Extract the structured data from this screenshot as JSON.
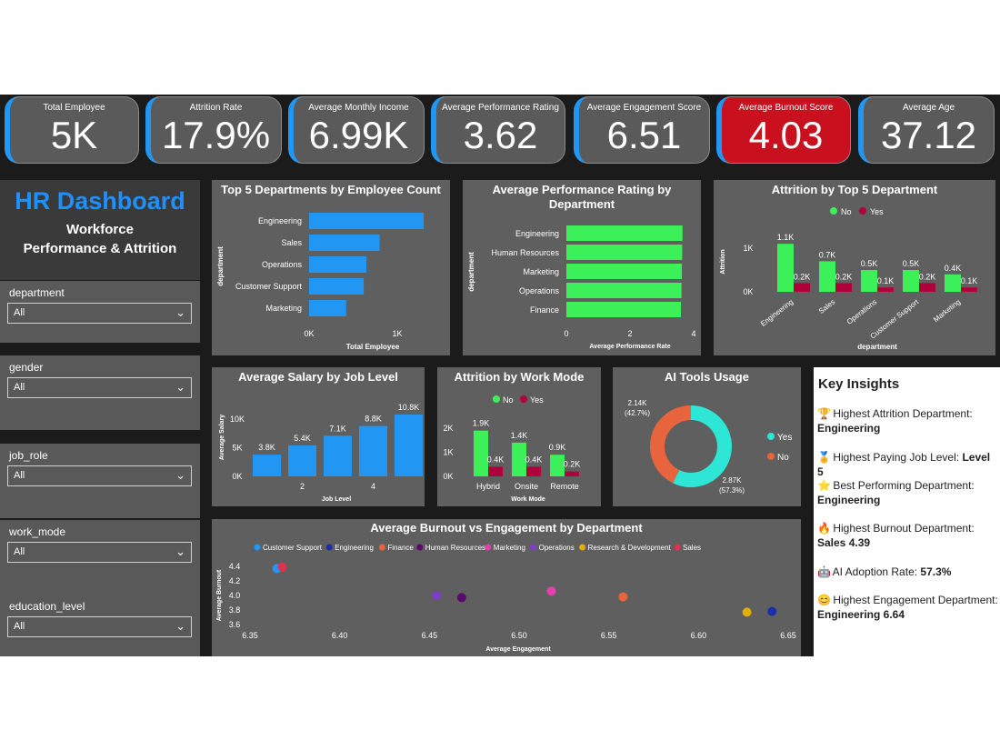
{
  "kpis": [
    {
      "label": "Total Employee",
      "value": "5K"
    },
    {
      "label": "Attrition Rate",
      "value": "17.9%"
    },
    {
      "label": "Average Monthly Income",
      "value": "6.99K"
    },
    {
      "label": "Average Performance Rating",
      "value": "3.62"
    },
    {
      "label": "Average Engagement Score",
      "value": "6.51"
    },
    {
      "label": "Average Burnout Score",
      "value": "4.03"
    },
    {
      "label": "Average Age",
      "value": "37.12"
    }
  ],
  "sidebar": {
    "title": "HR Dashboard",
    "subtitle_line1": "Workforce",
    "subtitle_line2": "Performance & Attrition",
    "slicers": [
      {
        "label": "department",
        "value": "All"
      },
      {
        "label": "gender",
        "value": "All"
      },
      {
        "label": "job_role",
        "value": "All"
      },
      {
        "label": "work_mode",
        "value": "All"
      },
      {
        "label": "education_level",
        "value": "All"
      }
    ]
  },
  "colors": {
    "blue": "#2196f3",
    "green": "#3cf05a",
    "crimson": "#b0003a",
    "alert_red": "#c8101f",
    "orange": "#e8643c",
    "teal": "#2ee6d6"
  },
  "chart_data": [
    {
      "type": "bar",
      "title": "Top 5 Departments by Employee Count",
      "orientation": "horizontal",
      "categories": [
        "Engineering",
        "Sales",
        "Operations",
        "Customer Support",
        "Marketing"
      ],
      "values": [
        1300,
        800,
        650,
        620,
        420
      ],
      "xlabel": "Total Employee",
      "ylabel": "department",
      "xticks": [
        "0K",
        "1K"
      ]
    },
    {
      "type": "bar",
      "title": "Average Performance Rating by Department",
      "orientation": "horizontal",
      "categories": [
        "Engineering",
        "Human Resources",
        "Marketing",
        "Operations",
        "Finance"
      ],
      "values": [
        3.65,
        3.64,
        3.63,
        3.62,
        3.6
      ],
      "xlabel": "Average Performance Rate",
      "ylabel": "department",
      "xticks": [
        "0",
        "2",
        "4"
      ],
      "xlim": [
        0,
        4
      ]
    },
    {
      "type": "bar",
      "title": "Attrition by Top 5 Department",
      "categories": [
        "Engineering",
        "Sales",
        "Operations",
        "Customer Support",
        "Marketing"
      ],
      "series": [
        {
          "name": "No",
          "values": [
            1100,
            700,
            500,
            500,
            400
          ],
          "labels": [
            "1.1K",
            "0.7K",
            "0.5K",
            "0.5K",
            "0.4K"
          ]
        },
        {
          "name": "Yes",
          "values": [
            200,
            200,
            100,
            200,
            100
          ],
          "labels": [
            "0.2K",
            "0.2K",
            "0.1K",
            "0.2K",
            "0.1K"
          ]
        }
      ],
      "xlabel": "department",
      "ylabel": "Attrition",
      "yticks": [
        "0K",
        "1K"
      ],
      "legend": "top-center"
    },
    {
      "type": "bar",
      "title": "Average Salary by Job Level",
      "categories": [
        "1",
        "2",
        "3",
        "4",
        "5"
      ],
      "values": [
        3800,
        5400,
        7100,
        8800,
        10800
      ],
      "labels": [
        "3.8K",
        "5.4K",
        "7.1K",
        "8.8K",
        "10.8K"
      ],
      "xticks": [
        "2",
        "4"
      ],
      "yticks": [
        "0K",
        "5K",
        "10K"
      ],
      "xlabel": "Job Level",
      "ylabel": "Average Salary"
    },
    {
      "type": "bar",
      "title": "Attrition by Work Mode",
      "categories": [
        "Hybrid",
        "Onsite",
        "Remote"
      ],
      "series": [
        {
          "name": "No",
          "values": [
            1900,
            1400,
            900
          ],
          "labels": [
            "1.9K",
            "1.4K",
            "0.9K"
          ]
        },
        {
          "name": "Yes",
          "values": [
            400,
            400,
            200
          ],
          "labels": [
            "0.4K",
            "0.4K",
            "0.2K"
          ]
        }
      ],
      "xlabel": "Work Mode",
      "yticks": [
        "0K",
        "1K",
        "2K"
      ],
      "legend": "top-center"
    },
    {
      "type": "pie",
      "title": "AI Tools Usage",
      "donut": true,
      "slices": [
        {
          "name": "Yes",
          "value": 2870,
          "label": "2.87K",
          "percent": "(57.3%)"
        },
        {
          "name": "No",
          "value": 2140,
          "label": "2.14K",
          "percent": "(42.7%)"
        }
      ],
      "legend": "right"
    },
    {
      "type": "scatter",
      "title": "Average Burnout vs Engagement by Department",
      "xlabel": "Average Engagement",
      "ylabel": "Average Burnout",
      "xlim": [
        6.35,
        6.65
      ],
      "ylim": [
        3.6,
        4.4
      ],
      "xticks": [
        "6.35",
        "6.40",
        "6.45",
        "6.50",
        "6.55",
        "6.60",
        "6.65"
      ],
      "yticks": [
        "3.6",
        "3.8",
        "4.0",
        "4.2",
        "4.4"
      ],
      "legend": "top",
      "series": [
        {
          "name": "Customer Support",
          "color": "#2196f3",
          "x": 6.365,
          "y": 4.37
        },
        {
          "name": "Engineering",
          "color": "#1a2fa8",
          "x": 6.641,
          "y": 3.78
        },
        {
          "name": "Finance",
          "color": "#e8643c",
          "x": 6.558,
          "y": 3.98
        },
        {
          "name": "Human Resources",
          "color": "#5a0a6a",
          "x": 6.468,
          "y": 3.97
        },
        {
          "name": "Marketing",
          "color": "#e63fae",
          "x": 6.518,
          "y": 4.06
        },
        {
          "name": "Operations",
          "color": "#7d3fc8",
          "x": 6.454,
          "y": 4.0
        },
        {
          "name": "Research & Development",
          "color": "#e0b000",
          "x": 6.627,
          "y": 3.77
        },
        {
          "name": "Sales",
          "color": "#e03050",
          "x": 6.368,
          "y": 4.39
        }
      ]
    }
  ],
  "insights": {
    "title": "Key Insights",
    "items": [
      {
        "icon": "🏆",
        "icon_name": "trophy-icon",
        "text": "Highest Attrition Department:",
        "value": "Engineering"
      },
      {
        "icon": "🏅",
        "icon_name": "medal-icon",
        "text": "Highest Paying Job Level:",
        "value": "Level 5"
      },
      {
        "icon": "⭐",
        "icon_name": "star-icon",
        "text": "Best Performing Department:",
        "value": "Engineering"
      },
      {
        "icon": "🔥",
        "icon_name": "fire-icon",
        "text": "Highest Burnout Department:",
        "value": "Sales 4.39"
      },
      {
        "icon": "🤖",
        "icon_name": "robot-icon",
        "text": "AI Adoption Rate:",
        "value": "57.3%"
      },
      {
        "icon": "😊",
        "icon_name": "smile-icon",
        "text": "Highest Engagement Department:",
        "value": "Engineering 6.64"
      }
    ]
  }
}
